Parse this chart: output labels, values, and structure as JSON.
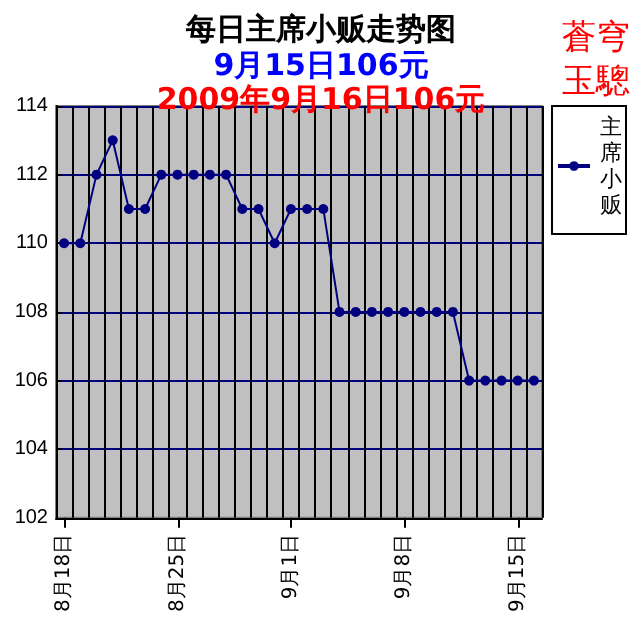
{
  "chart_data": {
    "type": "line",
    "title": "每日主席小贩走势图",
    "subtitle": "9月15日106元",
    "annotations": [
      "2009年9月16日106元",
      "蒼穹玉驄"
    ],
    "categories": [
      "8月18日",
      null,
      null,
      null,
      null,
      null,
      null,
      "8月25日",
      null,
      null,
      null,
      null,
      null,
      null,
      "9月1日",
      null,
      null,
      null,
      null,
      null,
      null,
      "9月8日",
      null,
      null,
      null,
      null,
      null,
      null,
      "9月15日",
      null
    ],
    "series": [
      {
        "name": "主席小贩",
        "color": "#000080",
        "values": [
          110,
          110,
          112,
          113,
          111,
          111,
          112,
          112,
          112,
          112,
          112,
          111,
          111,
          110,
          111,
          111,
          111,
          108,
          108,
          108,
          108,
          108,
          108,
          108,
          108,
          106,
          106,
          106,
          106,
          106
        ]
      }
    ],
    "ylim": [
      102,
      114
    ],
    "yticks": [
      102,
      104,
      106,
      108,
      110,
      112,
      114
    ],
    "grid": true,
    "legend": "right",
    "marker": "circle",
    "line_style": "solid"
  }
}
